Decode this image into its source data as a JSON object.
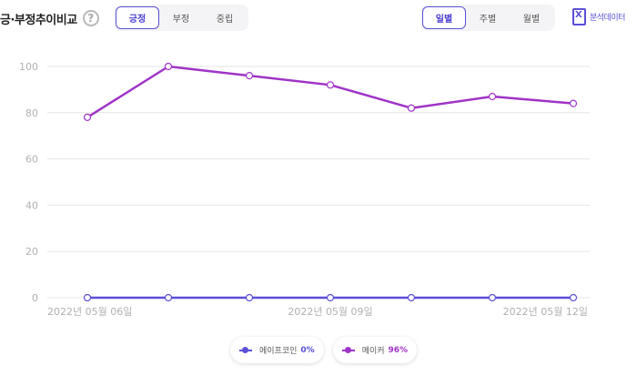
{
  "header": {
    "title": "긍·부정추이비교",
    "help_icon": "?"
  },
  "sentiment_tabs": [
    {
      "label": "긍정",
      "active": true
    },
    {
      "label": "부정",
      "active": false
    },
    {
      "label": "중립",
      "active": false
    }
  ],
  "period_tabs": [
    {
      "label": "일별",
      "active": true
    },
    {
      "label": "주별",
      "active": false
    },
    {
      "label": "월별",
      "active": false
    }
  ],
  "export": {
    "label": "분석데이터",
    "icon": "excel-icon"
  },
  "colors": {
    "accent": "#5a4fd6",
    "series1": "#5a4fd6",
    "series2": "#a033c7",
    "grid": "#e6e6e6",
    "tick": "#b0b0b0"
  },
  "chart_data": {
    "type": "line",
    "x": [
      "2022년 05월 06일",
      "2022-05-07",
      "2022-05-08",
      "2022년 05월 09일",
      "2022-05-10",
      "2022-05-11",
      "2022년 05월 12일"
    ],
    "x_tick_labels": [
      "2022년 05월 06일",
      "",
      "",
      "2022년 05월 09일",
      "",
      "",
      "2022년 05월 12일"
    ],
    "y_ticks": [
      0,
      20,
      40,
      60,
      80,
      100
    ],
    "ylim": [
      0,
      100
    ],
    "grid": true,
    "legend_position": "bottom",
    "series": [
      {
        "name": "에이프코인",
        "percent": "0%",
        "color": "#5a4fd6",
        "values": [
          0,
          0,
          0,
          0,
          0,
          0,
          0
        ]
      },
      {
        "name": "메이커",
        "percent": "96%",
        "color": "#a033c7",
        "values": [
          78,
          100,
          96,
          92,
          82,
          87,
          84
        ]
      }
    ]
  }
}
